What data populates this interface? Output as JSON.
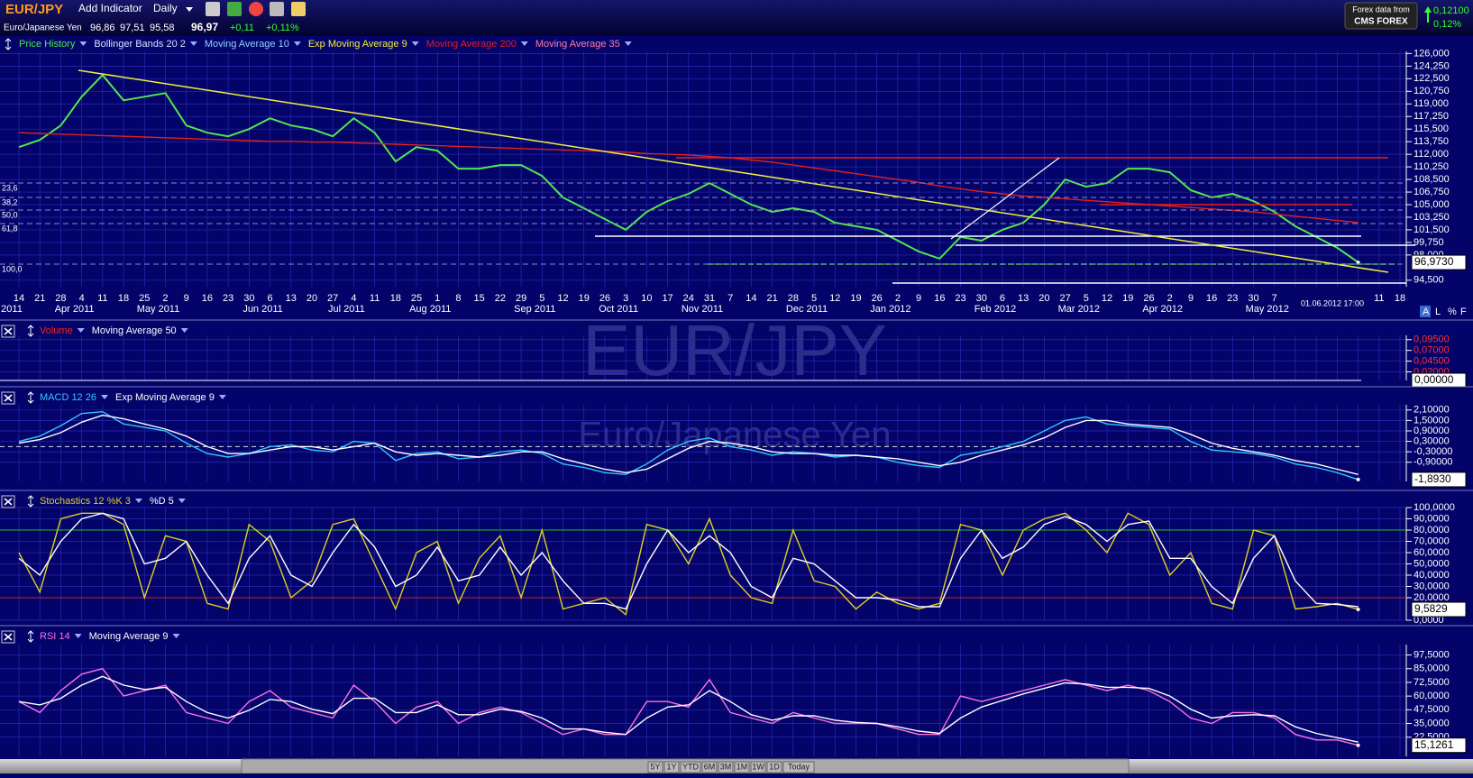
{
  "header": {
    "symbol": "EUR/JPY",
    "add_indicator": "Add Indicator",
    "period": "Daily",
    "name": "Euro/Japanese Yen",
    "quotes": [
      "96,86",
      "97,51",
      "95,58"
    ],
    "last": "96,97",
    "change": "+0,11",
    "change_pct": "+0,11%",
    "source": "Forex data from",
    "broker": "CMS FOREX",
    "right_change": "0,12100",
    "right_pct": "0,12%"
  },
  "watermark": {
    "title": "EUR/JPY",
    "subtitle": "Euro/Japanese Yen"
  },
  "weeks": [
    "14",
    "21",
    "28",
    "4",
    "11",
    "18",
    "25",
    "2",
    "9",
    "16",
    "23",
    "30",
    "6",
    "13",
    "20",
    "27",
    "4",
    "11",
    "18",
    "25",
    "1",
    "8",
    "15",
    "22",
    "29",
    "5",
    "12",
    "19",
    "26",
    "3",
    "10",
    "17",
    "24",
    "31",
    "7",
    "14",
    "21",
    "28",
    "5",
    "12",
    "19",
    "26",
    "2",
    "9",
    "16",
    "23",
    "30",
    "6",
    "13",
    "20",
    "27",
    "5",
    "12",
    "19",
    "26",
    "2",
    "9",
    "16",
    "23",
    "30",
    "7",
    null,
    null,
    null,
    null,
    "11",
    "18"
  ],
  "months": [
    "2011",
    null,
    null,
    "Apr 2011",
    null,
    null,
    null,
    "May 2011",
    null,
    null,
    null,
    null,
    "Jun 2011",
    null,
    null,
    null,
    "Jul 2011",
    null,
    null,
    null,
    "Aug 2011",
    null,
    null,
    null,
    null,
    "Sep 2011",
    null,
    null,
    null,
    "Oct 2011",
    null,
    null,
    null,
    "Nov 2011",
    null,
    null,
    null,
    null,
    "Dec 2011",
    null,
    null,
    null,
    "Jan 2012",
    null,
    null,
    null,
    null,
    "Feb 2012",
    null,
    null,
    null,
    "Mar 2012",
    null,
    null,
    null,
    "Apr 2012",
    null,
    null,
    null,
    null,
    "May 2012",
    null,
    null,
    null,
    null,
    null,
    null
  ],
  "timestamp": "01.06.2012 17:00",
  "scale_buttons": [
    "A",
    "L",
    "%",
    "F"
  ],
  "fib_labels": [
    "23,6",
    "38,2",
    "50,0",
    "61,8",
    "100,0"
  ],
  "zoom_buttons": [
    "5Y",
    "1Y",
    "YTD",
    "6M",
    "3M",
    "1M",
    "1W",
    "1D",
    "Today"
  ],
  "panels": [
    {
      "legend": [
        {
          "name": "Price History",
          "color": "#4fe84f",
          "values": [
            113,
            114,
            116,
            120,
            123,
            119.5,
            120,
            120.5,
            116,
            115,
            114.5,
            115.5,
            117,
            116,
            115.5,
            114.5,
            117,
            115,
            111,
            113,
            112.5,
            110,
            110,
            110.5,
            110.5,
            109,
            106,
            104.5,
            103,
            101.5,
            104,
            105.5,
            106.5,
            108,
            106.5,
            105,
            104,
            104.5,
            104,
            102.5,
            102,
            101.5,
            100,
            98.5,
            97.5,
            100.5,
            100,
            101.5,
            102.5,
            105,
            108.5,
            107.5,
            108,
            110,
            110,
            109.5,
            107,
            106,
            106.5,
            105.5,
            104,
            102,
            100.5,
            99,
            97,
            null,
            null
          ]
        },
        {
          "name": "Bollinger Bands 20 2",
          "color": "#d8e4ff"
        },
        {
          "name": "Moving Average 10",
          "color": "#8fd0ff"
        },
        {
          "name": "Exp Moving Average 9",
          "color": "#f0f040"
        },
        {
          "name": "Moving Average 200",
          "color": "#e02020",
          "values": [
            115,
            114.9,
            114.8,
            114.7,
            114.6,
            114.5,
            114.4,
            114.3,
            114.2,
            114.1,
            114,
            113.9,
            113.8,
            113.8,
            113.7,
            113.7,
            113.6,
            113.5,
            113.4,
            113.3,
            113.2,
            113.1,
            113,
            112.9,
            112.8,
            112.7,
            112.6,
            112.5,
            112.4,
            112.3,
            112.1,
            112,
            111.9,
            111.7,
            111.5,
            111.2,
            110.9,
            110.5,
            110.1,
            109.7,
            109.3,
            108.9,
            108.5,
            108.1,
            107.6,
            107.2,
            106.8,
            106.5,
            106.2,
            106,
            105.8,
            105.6,
            105.4,
            105.2,
            105,
            104.8,
            104.6,
            104.4,
            104.2,
            104,
            103.7,
            103.4,
            103.1,
            102.8,
            102.5,
            null,
            null
          ]
        },
        {
          "name": "Moving Average 35",
          "color": "#ff80a8"
        }
      ],
      "ylim": [
        93.6,
        126.3
      ],
      "yticks": [
        {
          "value": 126,
          "label": "126,000"
        },
        {
          "value": 124.25,
          "label": "124,250"
        },
        {
          "value": 122.5,
          "label": "122,500"
        },
        {
          "value": 120.75,
          "label": "120,750"
        },
        {
          "value": 119,
          "label": "119,000"
        },
        {
          "value": 117.25,
          "label": "117,250"
        },
        {
          "value": 115.5,
          "label": "115,500"
        },
        {
          "value": 113.75,
          "label": "113,750"
        },
        {
          "value": 112,
          "label": "112,000"
        },
        {
          "value": 110.25,
          "label": "110,250"
        },
        {
          "value": 108.5,
          "label": "108,500"
        },
        {
          "value": 106.75,
          "label": "106,750"
        },
        {
          "value": 105,
          "label": "105,000"
        },
        {
          "value": 103.25,
          "label": "103,250"
        },
        {
          "value": 101.5,
          "label": "101,500"
        },
        {
          "value": 99.75,
          "label": "99,750"
        },
        {
          "value": 98,
          "label": "98,000"
        },
        {
          "value": 94.5,
          "label": "94,500"
        }
      ],
      "last": {
        "value": 96.973,
        "label": "96,9730"
      }
    },
    {
      "legend": [
        {
          "name": "Volume",
          "color": "#ff2020"
        },
        {
          "name": "Moving Average 50",
          "color": "#ffffff"
        }
      ],
      "ylim": [
        0,
        0.105
      ],
      "tick_color": "#ff3030",
      "yticks": [
        {
          "value": 0.095,
          "label": "0,09500"
        },
        {
          "value": 0.07,
          "label": "0,07000"
        },
        {
          "value": 0.045,
          "label": "0,04500"
        },
        {
          "value": 0.02,
          "label": "0,02000"
        }
      ],
      "last": {
        "value": 0,
        "label": "0,00000"
      }
    },
    {
      "legend": [
        {
          "name": "MACD 12 26",
          "color": "#30c8ff",
          "values": [
            0.3,
            0.6,
            1.2,
            1.9,
            2,
            1.3,
            1.1,
            0.9,
            0.2,
            -0.4,
            -0.6,
            -0.4,
            0,
            0.1,
            -0.2,
            -0.3,
            0.3,
            0.2,
            -0.8,
            -0.4,
            -0.3,
            -0.7,
            -0.6,
            -0.3,
            -0.2,
            -0.4,
            -1,
            -1.2,
            -1.5,
            -1.6,
            -1,
            -0.2,
            0.3,
            0.5,
            0,
            -0.2,
            -0.5,
            -0.3,
            -0.4,
            -0.6,
            -0.5,
            -0.6,
            -0.9,
            -1.1,
            -1.2,
            -0.5,
            -0.3,
            0,
            0.3,
            0.9,
            1.5,
            1.7,
            1.3,
            1.2,
            1.1,
            1,
            0.3,
            -0.2,
            -0.3,
            -0.4,
            -0.6,
            -1,
            -1.2,
            -1.5,
            -1.893,
            null,
            null
          ]
        },
        {
          "name": "Exp Moving Average 9",
          "color": "#ffffff",
          "values": [
            0.2,
            0.4,
            0.8,
            1.4,
            1.8,
            1.6,
            1.3,
            1,
            0.6,
            0,
            -0.4,
            -0.4,
            -0.2,
            0,
            0,
            -0.2,
            0,
            0.2,
            -0.3,
            -0.5,
            -0.4,
            -0.5,
            -0.6,
            -0.5,
            -0.3,
            -0.3,
            -0.7,
            -1,
            -1.3,
            -1.5,
            -1.3,
            -0.7,
            -0.1,
            0.3,
            0.2,
            0,
            -0.3,
            -0.4,
            -0.4,
            -0.5,
            -0.5,
            -0.6,
            -0.7,
            -0.9,
            -1.1,
            -0.9,
            -0.5,
            -0.2,
            0.1,
            0.5,
            1.1,
            1.5,
            1.5,
            1.3,
            1.2,
            1.1,
            0.7,
            0.2,
            -0.1,
            -0.3,
            -0.5,
            -0.8,
            -1,
            -1.3,
            -1.6,
            null,
            null
          ]
        }
      ],
      "ylim": [
        -2,
        2.4
      ],
      "yticks": [
        {
          "value": 2.1,
          "label": "2,10000"
        },
        {
          "value": 1.5,
          "label": "1,50000"
        },
        {
          "value": 0.9,
          "label": "0,90000"
        },
        {
          "value": 0.3,
          "label": "0,30000"
        },
        {
          "value": -0.3,
          "label": "-0,30000"
        },
        {
          "value": -0.9,
          "label": "-0,90000"
        }
      ],
      "last": {
        "value": -1.893,
        "label": "-1,8930"
      }
    },
    {
      "legend": [
        {
          "name": "Stochastics 12 %K 3",
          "color": "#e0d020",
          "values": [
            60,
            25,
            90,
            95,
            95,
            85,
            20,
            75,
            70,
            15,
            10,
            85,
            70,
            20,
            35,
            85,
            90,
            50,
            10,
            60,
            70,
            15,
            55,
            75,
            20,
            80,
            10,
            15,
            20,
            5,
            85,
            80,
            50,
            90,
            40,
            20,
            15,
            80,
            35,
            30,
            10,
            25,
            15,
            10,
            15,
            85,
            80,
            40,
            80,
            90,
            95,
            80,
            60,
            95,
            85,
            40,
            60,
            15,
            10,
            80,
            75,
            10,
            12,
            15,
            9.5829,
            null,
            null
          ]
        },
        {
          "name": "%D 5",
          "color": "#ffffff",
          "values": [
            55,
            40,
            70,
            90,
            95,
            90,
            50,
            55,
            70,
            40,
            15,
            55,
            75,
            40,
            30,
            60,
            85,
            65,
            30,
            40,
            65,
            35,
            40,
            65,
            40,
            60,
            35,
            15,
            15,
            10,
            50,
            80,
            60,
            75,
            60,
            30,
            20,
            55,
            50,
            35,
            20,
            20,
            18,
            12,
            12,
            55,
            80,
            55,
            65,
            85,
            92,
            85,
            70,
            85,
            88,
            55,
            55,
            30,
            15,
            55,
            75,
            35,
            15,
            14,
            12,
            null,
            null
          ]
        }
      ],
      "ylim": [
        0,
        100
      ],
      "levels": [
        {
          "value": 80,
          "color": "#20c020"
        },
        {
          "value": 20,
          "color": "#d02020"
        }
      ],
      "yticks": [
        {
          "value": 100,
          "label": "100,0000"
        },
        {
          "value": 90,
          "label": "90,0000"
        },
        {
          "value": 80,
          "label": "80,0000"
        },
        {
          "value": 70,
          "label": "70,0000"
        },
        {
          "value": 60,
          "label": "60,0000"
        },
        {
          "value": 50,
          "label": "50,0000"
        },
        {
          "value": 40,
          "label": "40,0000"
        },
        {
          "value": 30,
          "label": "30,0000"
        },
        {
          "value": 20,
          "label": "20,0000"
        },
        {
          "value": 0,
          "label": "0,0000"
        }
      ],
      "last": {
        "value": 9.5829,
        "label": "9,5829"
      }
    },
    {
      "legend": [
        {
          "name": "RSI 14",
          "color": "#ff70e0",
          "values": [
            55,
            45,
            65,
            80,
            85,
            60,
            65,
            70,
            45,
            40,
            35,
            55,
            65,
            50,
            45,
            40,
            70,
            55,
            35,
            50,
            55,
            35,
            45,
            50,
            45,
            35,
            25,
            30,
            25,
            25,
            55,
            55,
            50,
            75,
            45,
            40,
            35,
            45,
            40,
            35,
            35,
            35,
            30,
            25,
            25,
            60,
            55,
            60,
            65,
            70,
            75,
            70,
            65,
            70,
            65,
            55,
            40,
            35,
            45,
            45,
            40,
            25,
            20,
            20,
            15.1261,
            null,
            null
          ]
        },
        {
          "name": "Moving Average 9",
          "color": "#ffffff",
          "values": [
            55,
            52,
            58,
            70,
            78,
            70,
            66,
            68,
            55,
            45,
            40,
            47,
            57,
            55,
            48,
            44,
            58,
            58,
            45,
            45,
            52,
            43,
            43,
            48,
            46,
            40,
            30,
            30,
            27,
            25,
            40,
            50,
            52,
            65,
            55,
            43,
            38,
            42,
            42,
            38,
            36,
            35,
            32,
            28,
            26,
            40,
            50,
            56,
            62,
            67,
            72,
            71,
            68,
            68,
            67,
            60,
            48,
            40,
            42,
            43,
            42,
            32,
            26,
            22,
            18,
            null,
            null
          ]
        }
      ],
      "ylim": [
        5,
        107
      ],
      "yticks": [
        {
          "value": 97.5,
          "label": "97,5000"
        },
        {
          "value": 85,
          "label": "85,0000"
        },
        {
          "value": 72.5,
          "label": "72,5000"
        },
        {
          "value": 60,
          "label": "60,0000"
        },
        {
          "value": 47.5,
          "label": "47,5000"
        },
        {
          "value": 35,
          "label": "35,0000"
        },
        {
          "value": 22.5,
          "label": "22,5000"
        }
      ],
      "last": {
        "value": 15.1261,
        "label": "15,1261"
      }
    }
  ]
}
